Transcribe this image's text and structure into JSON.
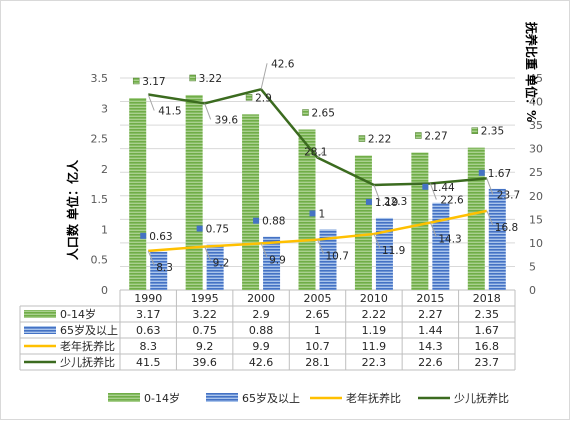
{
  "chart_data": {
    "type": "bar",
    "categories": [
      "1990",
      "1995",
      "2000",
      "2005",
      "2010",
      "2015",
      "2018"
    ],
    "series": [
      {
        "name": "0-14岁",
        "kind": "bar",
        "axis": "left",
        "values": [
          3.17,
          3.22,
          2.9,
          2.65,
          2.22,
          2.27,
          2.35
        ],
        "color": "#70ad47"
      },
      {
        "name": "65岁及以上",
        "kind": "bar",
        "axis": "left",
        "values": [
          0.63,
          0.75,
          0.88,
          1,
          1.19,
          1.44,
          1.67
        ],
        "color": "#4472c4"
      },
      {
        "name": "老年抚养比",
        "kind": "line",
        "axis": "right",
        "values": [
          8.3,
          9.2,
          9.9,
          10.7,
          11.9,
          14.3,
          16.8
        ],
        "color": "#ffc000"
      },
      {
        "name": "少儿抚养比",
        "kind": "line",
        "axis": "right",
        "values": [
          41.5,
          39.6,
          42.6,
          28.1,
          22.3,
          22.6,
          23.7
        ],
        "color": "#3b6b1f"
      }
    ],
    "ylabel": "人口数 单位：亿人",
    "y2label": "抚养比重 单位：%",
    "ylim": [
      0,
      3.5
    ],
    "yticks": [
      "0",
      "0.5",
      "1",
      "1.5",
      "2",
      "2.5",
      "3",
      "3.5"
    ],
    "y2lim": [
      0,
      45
    ],
    "y2ticks": [
      "0",
      "5",
      "10",
      "15",
      "20",
      "25",
      "30",
      "35",
      "40",
      "45"
    ],
    "grid": true,
    "legend_position": "bottom",
    "data_table": true
  }
}
